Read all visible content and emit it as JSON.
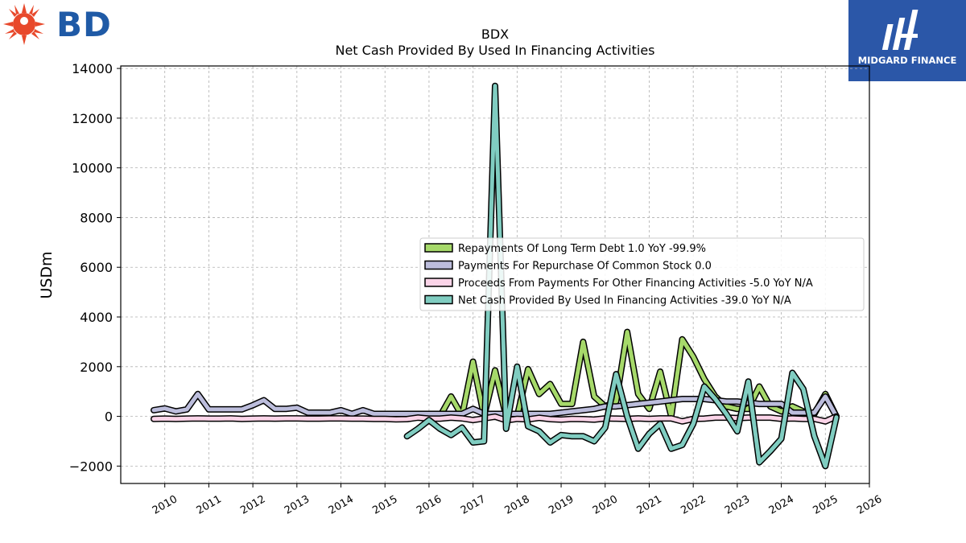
{
  "brand": {
    "left_logo_text": "BD",
    "right_logo_text": "MIDGARD FINANCE"
  },
  "chart_data": {
    "type": "line",
    "title": "BDX",
    "subtitle": "Net Cash Provided By Used In Financing Activities",
    "ylabel": "USDm",
    "xlabel": "",
    "xlim": [
      2009.0,
      2026.0
    ],
    "ylim": [
      -2700,
      14100
    ],
    "yticks": [
      -2000,
      0,
      2000,
      4000,
      6000,
      8000,
      10000,
      12000,
      14000
    ],
    "ytick_labels": [
      "−2000",
      "0",
      "2000",
      "4000",
      "6000",
      "8000",
      "10000",
      "12000",
      "14000"
    ],
    "xticks": [
      2010,
      2011,
      2012,
      2013,
      2014,
      2015,
      2016,
      2017,
      2018,
      2019,
      2020,
      2021,
      2022,
      2023,
      2024,
      2025,
      2026
    ],
    "xtick_labels": [
      "2010",
      "2011",
      "2012",
      "2013",
      "2014",
      "2015",
      "2016",
      "2017",
      "2018",
      "2019",
      "2020",
      "2021",
      "2022",
      "2023",
      "2024",
      "2025",
      "2026"
    ],
    "grid": true,
    "legend_position": "center-right",
    "series": [
      {
        "name": "Repayments Of Long Term Debt  1.0 YoY -99.9%",
        "color": "#a6d96a",
        "x": [
          2016.0,
          2016.25,
          2016.5,
          2016.75,
          2017.0,
          2017.25,
          2017.5,
          2017.75,
          2018.0,
          2018.25,
          2018.5,
          2018.75,
          2019.0,
          2019.25,
          2019.5,
          2019.75,
          2020.0,
          2020.25,
          2020.5,
          2020.75,
          2021.0,
          2021.25,
          2021.5,
          2021.75,
          2022.0,
          2022.25,
          2022.5,
          2022.75,
          2023.0,
          2023.25,
          2023.5,
          2023.75,
          2024.0,
          2024.25,
          2024.5,
          2024.75,
          2025.0,
          2025.25
        ],
        "y": [
          0,
          5,
          800,
          20,
          2200,
          0,
          1850,
          0,
          10,
          1900,
          900,
          1300,
          500,
          500,
          3000,
          800,
          400,
          600,
          3400,
          900,
          300,
          1800,
          0,
          3100,
          2400,
          1500,
          800,
          400,
          300,
          300,
          1200,
          400,
          200,
          400,
          200,
          100,
          900,
          1
        ]
      },
      {
        "name": "Payments For Repurchase Of Common Stock  0.0",
        "color": "#bcbddc",
        "x": [
          2009.75,
          2010.0,
          2010.25,
          2010.5,
          2010.75,
          2011.0,
          2011.25,
          2011.5,
          2011.75,
          2012.0,
          2012.25,
          2012.5,
          2012.75,
          2013.0,
          2013.25,
          2013.5,
          2013.75,
          2014.0,
          2014.25,
          2014.5,
          2014.75,
          2015.0,
          2015.25,
          2015.5,
          2015.75,
          2016.0,
          2016.25,
          2016.5,
          2016.75,
          2017.0,
          2017.25,
          2017.5,
          2017.75,
          2018.0,
          2018.25,
          2018.5,
          2018.75,
          2019.0,
          2019.25,
          2019.5,
          2019.75,
          2020.0,
          2020.25,
          2020.5,
          2020.75,
          2021.0,
          2021.25,
          2021.5,
          2021.75,
          2022.0,
          2022.25,
          2022.5,
          2022.75,
          2023.0,
          2023.25,
          2023.5,
          2023.75,
          2024.0,
          2024.25,
          2024.5,
          2024.75,
          2025.0,
          2025.25
        ],
        "y": [
          250,
          320,
          200,
          280,
          900,
          280,
          280,
          280,
          280,
          450,
          650,
          300,
          300,
          350,
          150,
          150,
          150,
          250,
          100,
          250,
          100,
          100,
          100,
          100,
          100,
          100,
          100,
          100,
          100,
          300,
          100,
          100,
          100,
          100,
          100,
          100,
          100,
          150,
          200,
          250,
          300,
          400,
          400,
          450,
          500,
          550,
          600,
          650,
          700,
          700,
          700,
          650,
          600,
          600,
          550,
          500,
          500,
          500,
          150,
          150,
          150,
          800,
          0
        ]
      },
      {
        "name": "Proceeds From Payments For Other Financing Activities  -5.0 YoY N/A",
        "color": "#fbd4e8",
        "x": [
          2009.75,
          2010.0,
          2010.25,
          2010.5,
          2010.75,
          2011.0,
          2011.25,
          2011.5,
          2011.75,
          2012.0,
          2012.25,
          2012.5,
          2012.75,
          2013.0,
          2013.25,
          2013.5,
          2013.75,
          2014.0,
          2014.25,
          2014.5,
          2014.75,
          2015.0,
          2015.25,
          2015.5,
          2015.75,
          2016.0,
          2016.25,
          2016.5,
          2016.75,
          2017.0,
          2017.25,
          2017.5,
          2017.75,
          2018.0,
          2018.25,
          2018.5,
          2018.75,
          2019.0,
          2019.25,
          2019.5,
          2019.75,
          2020.0,
          2020.25,
          2020.5,
          2020.75,
          2021.0,
          2021.25,
          2021.5,
          2021.75,
          2022.0,
          2022.25,
          2022.5,
          2022.75,
          2023.0,
          2023.25,
          2023.5,
          2023.75,
          2024.0,
          2024.25,
          2024.5,
          2024.75,
          2025.0,
          2025.25
        ],
        "y": [
          -100,
          -90,
          -100,
          -90,
          -80,
          -90,
          -90,
          -80,
          -100,
          -90,
          -80,
          -90,
          -80,
          -80,
          -90,
          -90,
          -80,
          -80,
          -90,
          -90,
          -100,
          -100,
          -120,
          -110,
          -50,
          -90,
          -90,
          -50,
          -80,
          -150,
          -80,
          -10,
          -160,
          -100,
          -120,
          -60,
          -110,
          -130,
          -100,
          -110,
          -130,
          -80,
          -90,
          -100,
          -80,
          -100,
          -80,
          -80,
          -200,
          -100,
          -90,
          -50,
          -50,
          -70,
          -50,
          -50,
          -50,
          -100,
          -80,
          -100,
          -100,
          -200,
          -5
        ]
      },
      {
        "name": "Net Cash Provided By Used In Financing Activities  -39.0 YoY N/A",
        "color": "#80cdc1",
        "x": [
          2015.5,
          2015.75,
          2016.0,
          2016.25,
          2016.5,
          2016.75,
          2017.0,
          2017.25,
          2017.5,
          2017.75,
          2018.0,
          2018.25,
          2018.5,
          2018.75,
          2019.0,
          2019.25,
          2019.5,
          2019.75,
          2020.0,
          2020.25,
          2020.5,
          2020.75,
          2021.0,
          2021.25,
          2021.5,
          2021.75,
          2022.0,
          2022.25,
          2022.5,
          2022.75,
          2023.0,
          2023.25,
          2023.5,
          2023.75,
          2024.0,
          2024.25,
          2024.5,
          2024.75,
          2025.0,
          2025.25
        ],
        "y": [
          -800,
          -500,
          -150,
          -500,
          -750,
          -450,
          -1050,
          -1000,
          13300,
          -500,
          2000,
          -400,
          -600,
          -1050,
          -750,
          -800,
          -800,
          -1000,
          -450,
          1700,
          0,
          -1300,
          -700,
          -300,
          -1300,
          -1150,
          -300,
          1200,
          700,
          100,
          -600,
          1400,
          -1850,
          -1400,
          -900,
          1750,
          1100,
          -800,
          -2000,
          -39
        ]
      }
    ]
  }
}
